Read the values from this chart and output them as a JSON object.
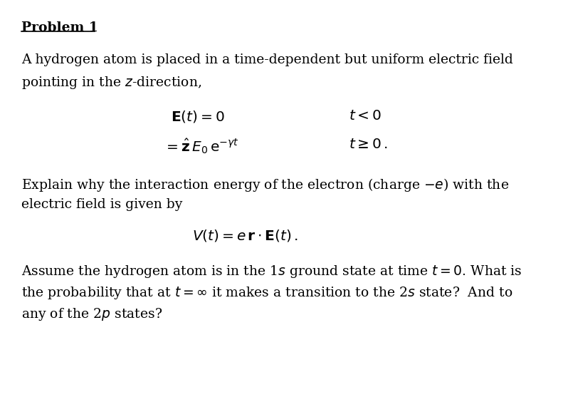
{
  "background_color": "#ffffff",
  "fig_width": 8.05,
  "fig_height": 5.57,
  "dpi": 100,
  "title": "Problem 1",
  "body_lines": [
    "A hydrogen atom is placed in a time-dependent but uniform electric field",
    "pointing in the $z$-direction,"
  ],
  "eq1_lhs": "$\\mathbf{E}(t) = 0$",
  "eq1_rhs": "$t < 0$",
  "eq2_lhs": "$= \\hat{\\mathbf{z}}\\, E_0\\, \\mathrm{e}^{-\\gamma t}$",
  "eq2_rhs": "$t \\geq 0\\,.$",
  "explain_lines": [
    "Explain why the interaction energy of the electron (charge $-e$) with the",
    "electric field is given by"
  ],
  "eq3": "$V(t) = e\\,\\mathbf{r} \\cdot \\mathbf{E}(t)\\,.$",
  "assume_lines": [
    "Assume the hydrogen atom is in the 1$s$ ground state at time $t=0$. What is",
    "the probability that at $t=\\infty$ it makes a transition to the 2$s$ state?  And to",
    "any of the 2$p$ states?"
  ]
}
